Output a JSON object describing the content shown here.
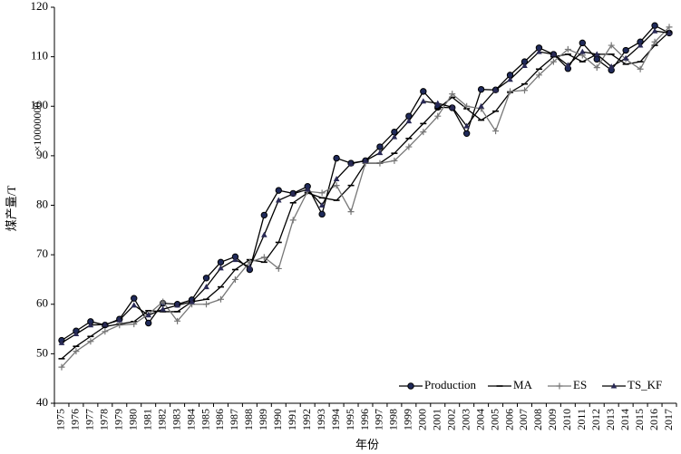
{
  "chart_data": {
    "type": "line",
    "y_label": "煤产量/T",
    "y_unit": "×10000000",
    "x_label": "年份",
    "categories": [
      "1975",
      "1976",
      "1977",
      "1978",
      "1979",
      "1980",
      "1981",
      "1982",
      "1983",
      "1984",
      "1985",
      "1986",
      "1987",
      "1988",
      "1989",
      "1990",
      "1991",
      "1992",
      "1993",
      "1994",
      "1995",
      "1996",
      "1997",
      "1998",
      "1999",
      "2000",
      "2001",
      "2002",
      "2003",
      "2004",
      "2005",
      "2006",
      "2007",
      "2008",
      "2009",
      "2010",
      "2011",
      "2012",
      "2013",
      "2014",
      "2015",
      "2016",
      "2017"
    ],
    "ylim": [
      40,
      120
    ],
    "yticks": [
      40,
      50,
      60,
      70,
      80,
      90,
      100,
      110,
      120
    ],
    "legend": "lower right",
    "series": [
      {
        "name": "Production",
        "color": "#000000",
        "marker": "circle",
        "values": [
          52.7,
          54.6,
          56.5,
          55.8,
          57,
          61.2,
          56.2,
          60.2,
          60,
          60.9,
          65.3,
          68.5,
          69.6,
          67,
          78,
          83,
          82.4,
          83.8,
          78.2,
          89.5,
          88.5,
          89,
          91.8,
          94.8,
          98,
          103,
          99.8,
          99.7,
          94.5,
          103.4,
          103.3,
          106.3,
          109,
          111.8,
          110.5,
          107.6,
          112.8,
          109.5,
          107.3,
          111.3,
          113,
          116.3,
          114.8
        ]
      },
      {
        "name": "MA",
        "color": "#000000",
        "marker": "dash",
        "values": [
          49,
          51.5,
          53.5,
          55.5,
          56,
          56.5,
          58.7,
          58.5,
          58.5,
          60.5,
          61,
          63.5,
          67,
          69,
          68.5,
          72.5,
          80.5,
          82.5,
          81.5,
          81,
          84,
          88.5,
          88.5,
          90.5,
          93.5,
          96.5,
          99.5,
          101.8,
          99.5,
          97.2,
          99,
          102.8,
          104.5,
          107.5,
          110,
          110.5,
          109,
          110.5,
          110.5,
          108.5,
          109,
          112.3,
          115
        ]
      },
      {
        "name": "ES",
        "color": "#777777",
        "marker": "plus",
        "values": [
          47.3,
          50.5,
          52.5,
          54.5,
          55.8,
          56,
          58,
          60.5,
          56.6,
          60,
          60,
          61,
          65,
          68.5,
          69.5,
          67.2,
          77,
          82.8,
          82.5,
          84,
          78.7,
          88.5,
          88.5,
          89,
          91.8,
          94.8,
          98,
          102.5,
          100,
          99.5,
          95,
          103,
          103.2,
          106.3,
          109,
          111.5,
          110.3,
          107.8,
          112.3,
          109.5,
          107.5,
          113,
          116
        ]
      },
      {
        "name": "TS_KF",
        "color": "#000000",
        "marker": "triangle",
        "values": [
          52.2,
          54,
          55.8,
          55.9,
          56.8,
          59.8,
          57.8,
          59,
          59.8,
          60.5,
          63.5,
          67.3,
          69,
          67.5,
          74,
          81,
          82.3,
          83.2,
          80,
          85.3,
          88.4,
          89,
          90.6,
          93.8,
          97,
          101,
          100.6,
          99.8,
          96,
          100,
          103.3,
          105.4,
          108.2,
          111,
          110.5,
          108.3,
          111,
          110.5,
          108,
          109.7,
          112.3,
          115.2,
          114.8
        ]
      }
    ]
  }
}
